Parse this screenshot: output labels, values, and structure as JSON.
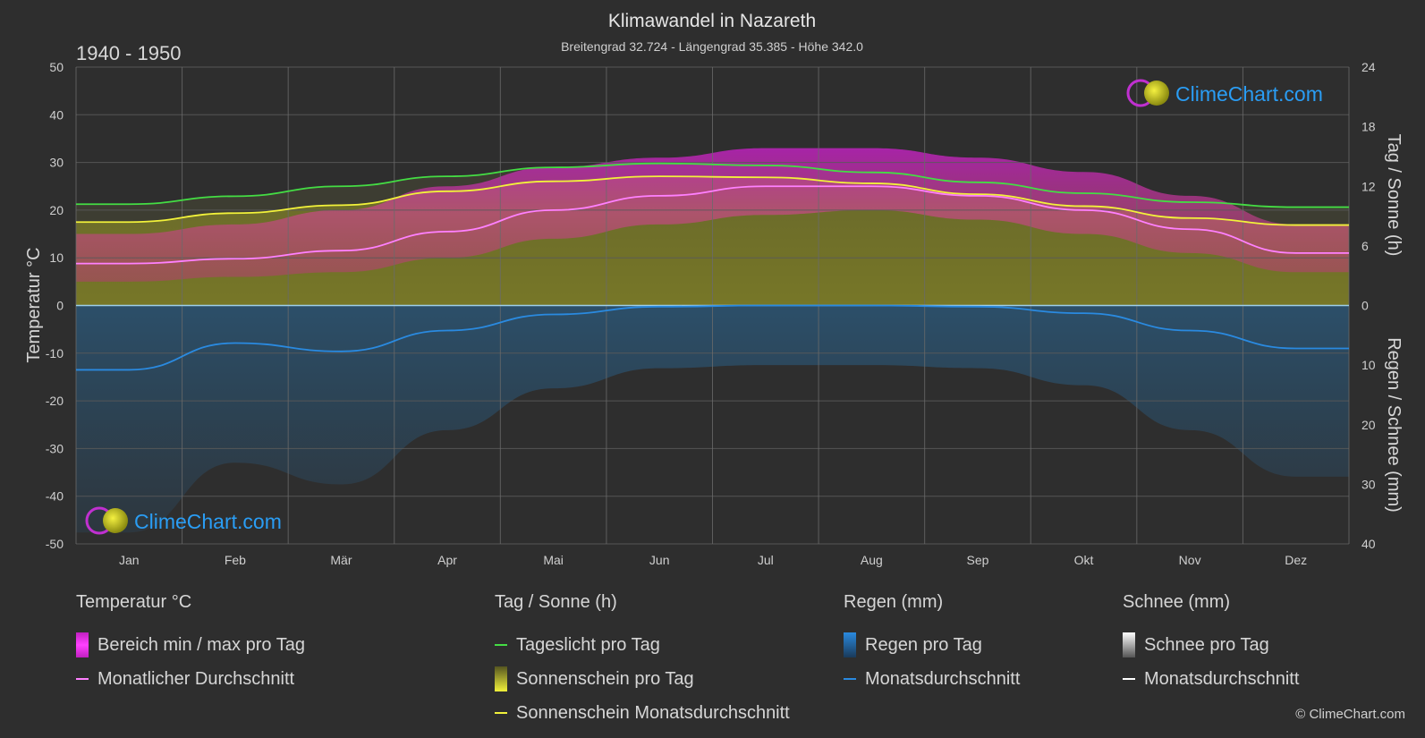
{
  "header": {
    "title": "Klimawandel in Nazareth",
    "subtitle": "Breitengrad 32.724 - Längengrad 35.385 - Höhe 342.0",
    "period": "1940 - 1950"
  },
  "logo_text": "ClimeChart.com",
  "copyright": "© ClimeChart.com",
  "colors": {
    "background": "#2e2e2e",
    "temp_range": "#d020d0",
    "temp_avg": "#ff80ff",
    "daylight": "#44dd44",
    "sunshine": "#8c8c1e",
    "sunshine_avg": "#f2f23a",
    "rain": "#2a7ab8",
    "rain_avg": "#2a8ae0",
    "snow": "#ffffff",
    "grid": "#5a5a5a",
    "logo_blue": "#2a9df4"
  },
  "chart_data": {
    "type": "area",
    "categories": [
      "Jan",
      "Feb",
      "Mär",
      "Apr",
      "Mai",
      "Jun",
      "Jul",
      "Aug",
      "Sep",
      "Okt",
      "Nov",
      "Dez"
    ],
    "y_left": {
      "label": "Temperatur °C",
      "range": [
        -50,
        50
      ],
      "ticks": [
        "50",
        "40",
        "30",
        "20",
        "10",
        "0",
        "-10",
        "-20",
        "-30",
        "-40",
        "-50"
      ]
    },
    "y_right_top": {
      "label": "Tag / Sonne (h)",
      "range": [
        0,
        24
      ],
      "ticks": [
        "24",
        "18",
        "12",
        "6",
        "0"
      ]
    },
    "y_right_bottom": {
      "label": "Regen / Schnee (mm)",
      "range": [
        0,
        40
      ],
      "ticks": [
        "10",
        "20",
        "30",
        "40"
      ]
    },
    "grid": true,
    "series": [
      {
        "name": "Tageslicht pro Tag",
        "axis": "sun_h",
        "values": [
          10.2,
          11.0,
          12.0,
          13.0,
          13.9,
          14.3,
          14.1,
          13.4,
          12.4,
          11.3,
          10.4,
          9.9
        ]
      },
      {
        "name": "Sonnenschein Monatsdurchschnitt",
        "axis": "sun_h",
        "values": [
          8.4,
          9.3,
          10.1,
          11.5,
          12.5,
          13.0,
          12.9,
          12.3,
          11.2,
          10.0,
          8.8,
          8.1
        ]
      },
      {
        "name": "Monatlicher Durchschnitt",
        "axis": "temp_c",
        "values": [
          8.8,
          9.8,
          11.5,
          15.5,
          20.0,
          23.0,
          25.0,
          25.0,
          23.0,
          20.0,
          16.0,
          11.0
        ]
      },
      {
        "name": "Bereich min / max pro Tag",
        "axis": "temp_c",
        "min": [
          5,
          6,
          7,
          10,
          14,
          17,
          19,
          20,
          18,
          15,
          11,
          7
        ],
        "max": [
          15,
          17,
          20,
          25,
          29,
          31,
          33,
          33,
          31,
          28,
          23,
          17
        ]
      },
      {
        "name": "Monatsdurchschnitt (Regen)",
        "axis": "rain_mm",
        "values": [
          10.8,
          6.3,
          7.7,
          4.2,
          1.5,
          0.2,
          0.0,
          0.0,
          0.2,
          1.3,
          4.2,
          7.2
        ]
      },
      {
        "name": "Monatsdurchschnitt (Schnee)",
        "axis": "rain_mm",
        "values": [
          0,
          0,
          0,
          0,
          0,
          0,
          0,
          0,
          0,
          0,
          0,
          0
        ]
      }
    ]
  },
  "legend": {
    "temperature": {
      "title": "Temperatur °C",
      "range_label": "Bereich min / max pro Tag",
      "avg_label": "Monatlicher Durchschnitt"
    },
    "sun": {
      "title": "Tag / Sonne (h)",
      "daylight_label": "Tageslicht pro Tag",
      "sunshine_label": "Sonnenschein pro Tag",
      "sunshine_avg_label": "Sonnenschein Monatsdurchschnitt"
    },
    "rain": {
      "title": "Regen (mm)",
      "rain_label": "Regen pro Tag",
      "avg_label": "Monatsdurchschnitt"
    },
    "snow": {
      "title": "Schnee (mm)",
      "snow_label": "Schnee pro Tag",
      "avg_label": "Monatsdurchschnitt"
    }
  }
}
